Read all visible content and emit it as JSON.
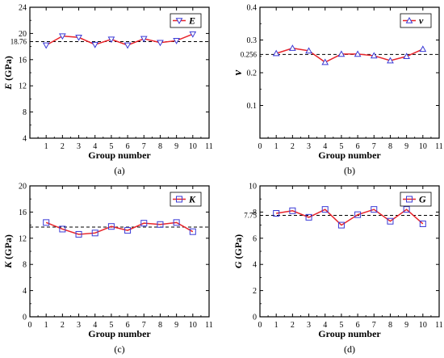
{
  "chart_data": [
    {
      "type": "line",
      "panel_label": "(a)",
      "xlabel": "Group number",
      "ylabel": "E (GPa)",
      "ylabel_symbol": "E",
      "ylabel_unit": " (GPa)",
      "xlim": [
        0,
        11
      ],
      "ylim": [
        4,
        24
      ],
      "xticks": [
        "1",
        "2",
        "3",
        "4",
        "5",
        "6",
        "7",
        "8",
        "9",
        "10",
        "11"
      ],
      "yticks": [
        "4",
        "8",
        "12",
        "16",
        "20",
        "24"
      ],
      "series": [
        {
          "name": "E",
          "marker": "triangle-down",
          "x": [
            1,
            2,
            3,
            4,
            5,
            6,
            7,
            8,
            9,
            10
          ],
          "values": [
            18.2,
            19.6,
            19.4,
            18.3,
            19.1,
            18.2,
            19.2,
            18.6,
            18.9,
            19.9
          ]
        }
      ],
      "reference_line": {
        "value": 18.76,
        "label": "18.76"
      },
      "legend_position": "top-right"
    },
    {
      "type": "line",
      "panel_label": "(b)",
      "xlabel": "Group number",
      "ylabel": "ν",
      "ylabel_symbol": "ν",
      "ylabel_unit": "",
      "xlim": [
        0,
        11
      ],
      "ylim": [
        0.0,
        0.4
      ],
      "xticks": [
        "0",
        "1",
        "2",
        "3",
        "4",
        "5",
        "6",
        "7",
        "8",
        "9",
        "10",
        "11"
      ],
      "yticks": [
        "0.1",
        "0.2",
        "0.3",
        "0.4"
      ],
      "series": [
        {
          "name": "ν",
          "marker": "triangle-up",
          "x": [
            1,
            2,
            3,
            4,
            5,
            6,
            7,
            8,
            9,
            10
          ],
          "values": [
            0.259,
            0.275,
            0.267,
            0.232,
            0.257,
            0.257,
            0.252,
            0.237,
            0.25,
            0.272
          ]
        }
      ],
      "reference_line": {
        "value": 0.256,
        "label": "0.256"
      },
      "legend_position": "top-right"
    },
    {
      "type": "line",
      "panel_label": "(c)",
      "xlabel": "Group number",
      "ylabel": "K (GPa)",
      "ylabel_symbol": "K",
      "ylabel_unit": " (GPa)",
      "xlim": [
        0,
        11
      ],
      "ylim": [
        0,
        20
      ],
      "xticks": [
        "0",
        "1",
        "2",
        "3",
        "4",
        "5",
        "6",
        "7",
        "8",
        "9",
        "10",
        "11"
      ],
      "yticks": [
        "0",
        "4",
        "8",
        "12",
        "16",
        "20"
      ],
      "series": [
        {
          "name": "K",
          "marker": "square",
          "x": [
            1,
            2,
            3,
            4,
            5,
            6,
            7,
            8,
            9,
            10
          ],
          "values": [
            14.4,
            13.4,
            12.6,
            12.8,
            13.8,
            13.2,
            14.3,
            14.1,
            14.4,
            13.0
          ]
        }
      ],
      "reference_line": {
        "value": 13.7,
        "label": ""
      },
      "legend_position": "top-right"
    },
    {
      "type": "line",
      "panel_label": "(d)",
      "xlabel": "Group number",
      "ylabel": "G (GPa)",
      "ylabel_symbol": "G",
      "ylabel_unit": " (GPa)",
      "xlim": [
        0,
        11
      ],
      "ylim": [
        0,
        10
      ],
      "xticks": [
        "0",
        "1",
        "2",
        "3",
        "4",
        "5",
        "6",
        "7",
        "8",
        "9",
        "10",
        "11"
      ],
      "yticks": [
        "0",
        "2",
        "4",
        "6",
        "8",
        "10"
      ],
      "series": [
        {
          "name": "G",
          "marker": "square",
          "x": [
            1,
            2,
            3,
            4,
            5,
            6,
            7,
            8,
            9,
            10
          ],
          "values": [
            7.9,
            8.1,
            7.6,
            8.2,
            7.0,
            7.8,
            8.2,
            7.3,
            8.2,
            7.1
          ]
        }
      ],
      "reference_line": {
        "value": 7.75,
        "label": "7.75"
      },
      "legend_position": "top-right"
    }
  ],
  "colors": {
    "line": "#e8242a",
    "marker": "#3a3ad6",
    "reference": "#000000",
    "axis": "#000000"
  }
}
